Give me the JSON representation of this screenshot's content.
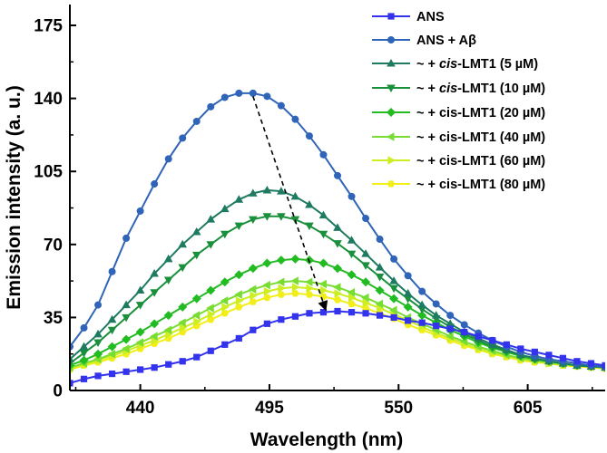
{
  "chart_data": {
    "type": "line",
    "xlabel": "Wavelength (nm)",
    "ylabel": "Emission intensity (a. u.)",
    "xlim": [
      410,
      638
    ],
    "ylim": [
      0,
      185
    ],
    "xticks": [
      440,
      495,
      550,
      605
    ],
    "yticks": [
      0,
      35,
      70,
      105,
      140,
      175
    ],
    "grid": false,
    "legend": "top-right",
    "annotations": [
      "dashed arrow from peak of ANS + Aβ (~488 nm, 142) down to ANS peak (~518 nm, 37)"
    ],
    "x": [
      410,
      416,
      422,
      428,
      434,
      440,
      446,
      452,
      458,
      464,
      470,
      476,
      482,
      488,
      494,
      500,
      506,
      512,
      518,
      524,
      530,
      536,
      542,
      548,
      554,
      560,
      566,
      572,
      578,
      584,
      590,
      596,
      602,
      608,
      614,
      620,
      626,
      632,
      638
    ],
    "series": [
      {
        "name": "ANS",
        "legend_parts": [
          {
            "t": "ANS",
            "i": false
          }
        ],
        "color": "#3333ee",
        "marker": "square",
        "values": [
          3.5,
          5.5,
          7,
          8,
          9,
          10,
          11,
          12.5,
          14,
          16,
          19,
          22,
          25,
          29,
          32,
          34,
          35.5,
          37,
          37.5,
          38,
          37.5,
          37,
          36,
          35,
          33.5,
          32.5,
          31,
          29.5,
          28,
          26,
          24,
          22,
          20,
          18.5,
          17,
          15.5,
          14,
          13,
          12
        ]
      },
      {
        "name": "ANS + Aβ",
        "legend_parts": [
          {
            "t": "ANS + Aβ",
            "i": false
          }
        ],
        "color": "#2f64b8",
        "marker": "circle",
        "values": [
          21,
          30,
          41,
          57,
          73,
          86,
          99,
          111,
          121,
          129,
          136,
          140.5,
          142.5,
          142.5,
          141,
          136.5,
          130,
          122,
          113,
          103,
          93,
          82.5,
          72.5,
          63,
          55,
          47.5,
          41.5,
          36,
          31.5,
          27.5,
          24,
          21,
          18.5,
          16.5,
          15,
          14,
          13,
          12,
          11.5
        ]
      },
      {
        "name": "~ + cis-LMT1 (5 µM)",
        "legend_parts": [
          {
            "t": "~ + ",
            "i": false
          },
          {
            "t": "cis",
            "i": true
          },
          {
            "t": "-LMT1 (5 µM)",
            "i": false
          }
        ],
        "color": "#1e7a60",
        "marker": "triangle-up",
        "values": [
          15,
          21,
          27,
          34,
          41,
          48,
          56,
          63,
          70,
          76,
          82,
          87,
          91.5,
          94.5,
          96,
          95.5,
          93,
          89,
          84,
          78,
          72,
          65.5,
          59,
          52.5,
          46.5,
          41,
          36,
          32,
          28,
          25,
          22,
          19.5,
          17,
          15.5,
          14,
          13,
          12,
          11.5,
          11
        ]
      },
      {
        "name": "~ + cis-LMT1 (10 µM)",
        "legend_parts": [
          {
            "t": "~ + ",
            "i": false
          },
          {
            "t": "cis",
            "i": true
          },
          {
            "t": "-LMT1 (10 µM)",
            "i": false
          }
        ],
        "color": "#1a8f3c",
        "marker": "triangle-down",
        "values": [
          13,
          18,
          23,
          29,
          35,
          41,
          47,
          53,
          59,
          65,
          70,
          75,
          79,
          82,
          83.5,
          83.5,
          82,
          79,
          75,
          70.5,
          65.5,
          60,
          54.5,
          49,
          44,
          39,
          34.5,
          30.5,
          27,
          24,
          21,
          19,
          17,
          15.5,
          14,
          13,
          12,
          11.5,
          11
        ]
      },
      {
        "name": "~ + cis-LMT1 (20 µM)",
        "legend_parts": [
          {
            "t": "~ + cis-LMT1 (20 µM)",
            "i": false
          }
        ],
        "color": "#22bb22",
        "marker": "diamond",
        "values": [
          12,
          14.5,
          17.5,
          21,
          24.5,
          28,
          32,
          36,
          40,
          44,
          48,
          52,
          55.5,
          58.5,
          61,
          62.5,
          63,
          62.5,
          61,
          58.5,
          55.5,
          52,
          48,
          44,
          40,
          36,
          32.5,
          29,
          26,
          23,
          20.5,
          18.5,
          16.5,
          15,
          14,
          13,
          12,
          11.5,
          11
        ]
      },
      {
        "name": "~ + cis-LMT1 (40 µM)",
        "legend_parts": [
          {
            "t": "~ + cis-LMT1 (40 µM)",
            "i": false
          }
        ],
        "color": "#77dd33",
        "marker": "triangle-left",
        "values": [
          11,
          13,
          15,
          17.5,
          20,
          23,
          26,
          29,
          32.5,
          36,
          39.5,
          43,
          46,
          48.5,
          50.5,
          52,
          52.5,
          52,
          51,
          49.5,
          47,
          44.5,
          41.5,
          38.5,
          35,
          32,
          29,
          26,
          23.5,
          21,
          19,
          17,
          15.5,
          14.5,
          13.5,
          12.5,
          12,
          11.5,
          11
        ]
      },
      {
        "name": "~ + cis-LMT1 (60 µM)",
        "legend_parts": [
          {
            "t": "~ + cis-LMT1 (60 µM)",
            "i": false
          }
        ],
        "color": "#ccee22",
        "marker": "triangle-right",
        "values": [
          10.5,
          12.5,
          14.5,
          16.5,
          19,
          21.5,
          24,
          27,
          30,
          33,
          36.5,
          40,
          43,
          45.5,
          47.5,
          49,
          49.5,
          49,
          48,
          46.5,
          44.5,
          42,
          39.5,
          36.5,
          33.5,
          30.5,
          27.5,
          25,
          22.5,
          20,
          18,
          16.5,
          15,
          14,
          13,
          12.5,
          12,
          11.5,
          11
        ]
      },
      {
        "name": "~ + cis-LMT1 (80 µM)",
        "legend_parts": [
          {
            "t": "~ + cis-LMT1 (80 µM)",
            "i": false
          }
        ],
        "color": "#f2ee1a",
        "marker": "hexagon",
        "values": [
          10,
          12,
          13.5,
          15.5,
          17.5,
          20,
          22.5,
          25,
          28,
          31,
          34,
          37,
          40,
          42.5,
          44.5,
          46,
          46.5,
          46,
          45,
          43.5,
          41.5,
          39.5,
          37,
          34.5,
          31.5,
          29,
          26.5,
          24,
          21.5,
          19.5,
          17.5,
          16,
          14.5,
          13.5,
          13,
          12,
          11.5,
          11,
          10.5
        ]
      }
    ]
  }
}
